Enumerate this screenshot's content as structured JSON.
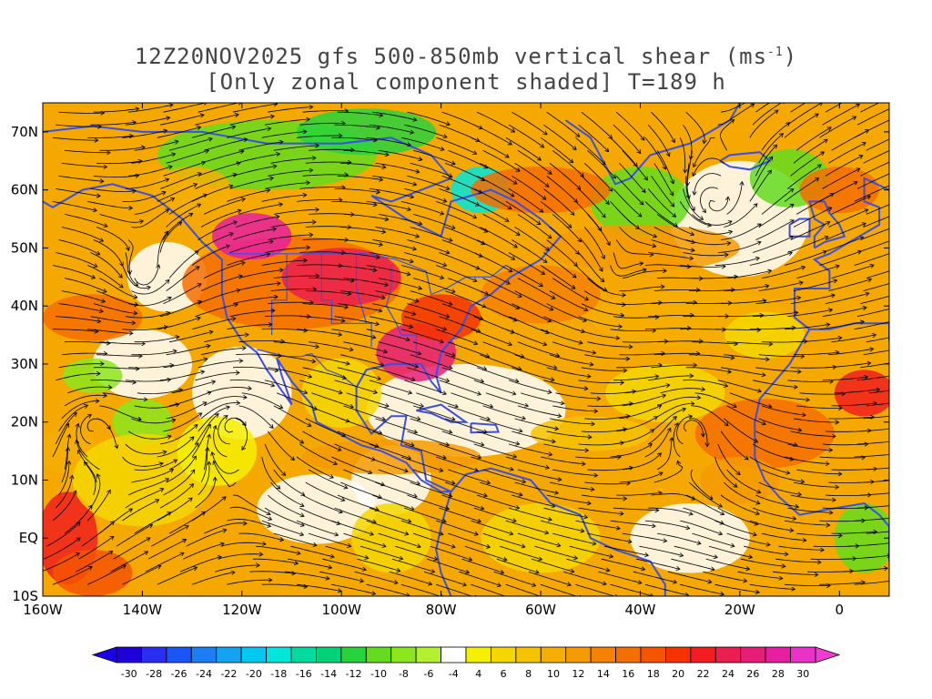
{
  "title": {
    "line1": "12Z20NOV2025 gfs 500-850mb vertical shear (ms",
    "line1_sup": "-1",
    "line1_end": ")",
    "line2": "[Only zonal component shaded] T=189 h"
  },
  "map": {
    "lon_range": [
      -160,
      10
    ],
    "lat_range": [
      -10,
      75
    ],
    "x_ticks": [
      {
        "lon": -160,
        "label": "160W"
      },
      {
        "lon": -140,
        "label": "140W"
      },
      {
        "lon": -120,
        "label": "120W"
      },
      {
        "lon": -100,
        "label": "100W"
      },
      {
        "lon": -80,
        "label": "80W"
      },
      {
        "lon": -60,
        "label": "60W"
      },
      {
        "lon": -40,
        "label": "40W"
      },
      {
        "lon": -20,
        "label": "20W"
      },
      {
        "lon": 0,
        "label": "0"
      }
    ],
    "y_ticks": [
      {
        "lat": -10,
        "label": "10S"
      },
      {
        "lat": 0,
        "label": "EQ"
      },
      {
        "lat": 10,
        "label": "10N"
      },
      {
        "lat": 20,
        "label": "20N"
      },
      {
        "lat": 30,
        "label": "30N"
      },
      {
        "lat": 40,
        "label": "40N"
      },
      {
        "lat": 50,
        "label": "50N"
      },
      {
        "lat": 60,
        "label": "60N"
      },
      {
        "lat": 70,
        "label": "70N"
      }
    ],
    "coastline_color": "#3a4fe8",
    "streamline_color": "#000000"
  },
  "colorbar": {
    "labels": [
      "-30",
      "-28",
      "-26",
      "-24",
      "-22",
      "-20",
      "-18",
      "-16",
      "-14",
      "-12",
      "-10",
      "-8",
      "-6",
      "-4",
      "4",
      "6",
      "8",
      "10",
      "12",
      "14",
      "16",
      "18",
      "20",
      "22",
      "24",
      "26",
      "28",
      "30"
    ],
    "colors": [
      "#1f00d8",
      "#2b2df0",
      "#1a55f5",
      "#1e7cf5",
      "#12a4f0",
      "#00c8f0",
      "#00e6dc",
      "#00dca0",
      "#00d278",
      "#28d23c",
      "#64dc1e",
      "#8ce61e",
      "#b4f032",
      "#ffffff",
      "#f5f000",
      "#f5d700",
      "#f5c300",
      "#f5af00",
      "#f59b00",
      "#f58200",
      "#f56e00",
      "#f55500",
      "#f53200",
      "#f01e1e",
      "#eb1e50",
      "#e61e78",
      "#e61ea0",
      "#eb32c8"
    ],
    "low_arrow_color": "#1a00e6",
    "high_arrow_color": "#f03cd2"
  }
}
